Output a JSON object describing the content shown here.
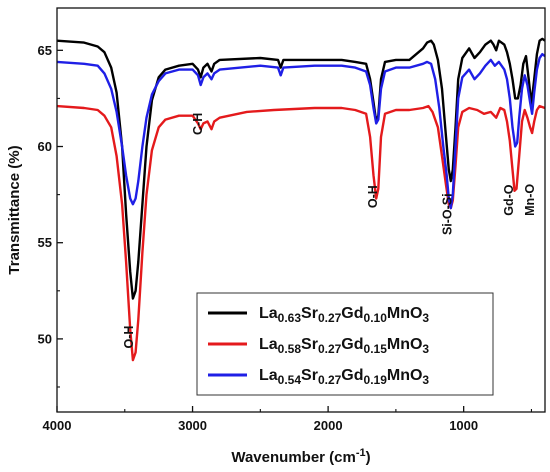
{
  "chart_data": {
    "type": "line",
    "xlabel": "Wavenumber (cm",
    "xlabel_sup": "-1",
    "xlabel_close": ")",
    "ylabel": "Transmittance (%)",
    "xlim": [
      4000,
      400
    ],
    "ylim": [
      46.2,
      67.2
    ],
    "x_ticks": [
      4000,
      3000,
      2000,
      1000
    ],
    "y_ticks": [
      50,
      55,
      60,
      65
    ],
    "annotations": [
      {
        "text": "O-H",
        "x": 3440,
        "y": 49.5,
        "vertical": true
      },
      {
        "text": "C-H",
        "x": 2930,
        "y": 60.6,
        "vertical": true
      },
      {
        "text": "O-H",
        "x": 1640,
        "y": 56.8,
        "vertical": true
      },
      {
        "text": "Si-O-Si",
        "x": 1090,
        "y": 55.4,
        "vertical": true
      },
      {
        "text": "Gd-O",
        "x": 635,
        "y": 56.4,
        "vertical": true
      },
      {
        "text": "Mn-O",
        "x": 480,
        "y": 56.4,
        "vertical": true
      }
    ],
    "series": [
      {
        "color": "#000000",
        "legend": [
          {
            "t": "La",
            "sub": false
          },
          {
            "t": "0.63",
            "sub": true
          },
          {
            "t": "Sr",
            "sub": false
          },
          {
            "t": "0.27",
            "sub": true
          },
          {
            "t": "Gd",
            "sub": false
          },
          {
            "t": "0.10",
            "sub": true
          },
          {
            "t": "MnO",
            "sub": false
          },
          {
            "t": "3",
            "sub": true
          }
        ],
        "points": [
          [
            4000,
            65.5
          ],
          [
            3800,
            65.4
          ],
          [
            3700,
            65.2
          ],
          [
            3650,
            64.9
          ],
          [
            3600,
            64.1
          ],
          [
            3560,
            62.8
          ],
          [
            3520,
            60
          ],
          [
            3490,
            56.5
          ],
          [
            3460,
            53.5
          ],
          [
            3440,
            52.1
          ],
          [
            3420,
            52.5
          ],
          [
            3400,
            54
          ],
          [
            3370,
            57
          ],
          [
            3340,
            60
          ],
          [
            3300,
            62.4
          ],
          [
            3250,
            63.6
          ],
          [
            3200,
            64.0
          ],
          [
            3100,
            64.2
          ],
          [
            3000,
            64.3
          ],
          [
            2960,
            64.0
          ],
          [
            2940,
            63.6
          ],
          [
            2920,
            64.1
          ],
          [
            2890,
            64.3
          ],
          [
            2860,
            63.9
          ],
          [
            2840,
            64.3
          ],
          [
            2800,
            64.5
          ],
          [
            2500,
            64.6
          ],
          [
            2370,
            64.5
          ],
          [
            2350,
            64.1
          ],
          [
            2330,
            64.5
          ],
          [
            2100,
            64.5
          ],
          [
            1900,
            64.5
          ],
          [
            1800,
            64.4
          ],
          [
            1720,
            64.3
          ],
          [
            1690,
            63.5
          ],
          [
            1665,
            62.3
          ],
          [
            1645,
            61.3
          ],
          [
            1630,
            61.6
          ],
          [
            1610,
            63.5
          ],
          [
            1580,
            64.4
          ],
          [
            1500,
            64.5
          ],
          [
            1400,
            64.5
          ],
          [
            1300,
            65.1
          ],
          [
            1270,
            65.4
          ],
          [
            1240,
            65.5
          ],
          [
            1220,
            65.3
          ],
          [
            1190,
            64.5
          ],
          [
            1160,
            63
          ],
          [
            1130,
            60.5
          ],
          [
            1110,
            58.8
          ],
          [
            1095,
            58.2
          ],
          [
            1080,
            58.8
          ],
          [
            1060,
            61
          ],
          [
            1040,
            63.5
          ],
          [
            1010,
            64.6
          ],
          [
            960,
            65.1
          ],
          [
            920,
            64.6
          ],
          [
            880,
            64.9
          ],
          [
            840,
            65.3
          ],
          [
            800,
            65.5
          ],
          [
            780,
            65.3
          ],
          [
            760,
            65.0
          ],
          [
            740,
            65.5
          ],
          [
            700,
            65.3
          ],
          [
            680,
            64.9
          ],
          [
            660,
            64.3
          ],
          [
            640,
            63.5
          ],
          [
            620,
            62.5
          ],
          [
            600,
            62.5
          ],
          [
            580,
            63.2
          ],
          [
            560,
            64.3
          ],
          [
            540,
            64.7
          ],
          [
            520,
            63.5
          ],
          [
            500,
            62.2
          ],
          [
            480,
            63.5
          ],
          [
            460,
            64.8
          ],
          [
            440,
            65.5
          ],
          [
            420,
            65.6
          ],
          [
            400,
            65.5
          ]
        ]
      },
      {
        "color": "#e41a1c",
        "legend": [
          {
            "t": "La",
            "sub": false
          },
          {
            "t": "0.58",
            "sub": true
          },
          {
            "t": "Sr",
            "sub": false
          },
          {
            "t": "0.27",
            "sub": true
          },
          {
            "t": "Gd",
            "sub": false
          },
          {
            "t": "0.15",
            "sub": true
          },
          {
            "t": "MnO",
            "sub": false
          },
          {
            "t": "3",
            "sub": true
          }
        ],
        "points": [
          [
            4000,
            62.1
          ],
          [
            3800,
            62.0
          ],
          [
            3700,
            61.9
          ],
          [
            3650,
            61.6
          ],
          [
            3600,
            61.0
          ],
          [
            3560,
            59.5
          ],
          [
            3520,
            57
          ],
          [
            3490,
            54
          ],
          [
            3460,
            50.5
          ],
          [
            3440,
            48.9
          ],
          [
            3420,
            49.3
          ],
          [
            3400,
            51
          ],
          [
            3370,
            54.5
          ],
          [
            3340,
            57.5
          ],
          [
            3300,
            59.8
          ],
          [
            3250,
            61.0
          ],
          [
            3200,
            61.4
          ],
          [
            3100,
            61.6
          ],
          [
            3000,
            61.6
          ],
          [
            2960,
            61.2
          ],
          [
            2940,
            60.9
          ],
          [
            2920,
            61.2
          ],
          [
            2890,
            61.3
          ],
          [
            2860,
            60.9
          ],
          [
            2840,
            61.3
          ],
          [
            2800,
            61.5
          ],
          [
            2600,
            61.8
          ],
          [
            2400,
            61.9
          ],
          [
            2100,
            62.0
          ],
          [
            1900,
            62.0
          ],
          [
            1800,
            61.9
          ],
          [
            1720,
            61.7
          ],
          [
            1690,
            60.5
          ],
          [
            1665,
            58.5
          ],
          [
            1645,
            57.3
          ],
          [
            1630,
            57.8
          ],
          [
            1610,
            60.5
          ],
          [
            1580,
            61.7
          ],
          [
            1500,
            61.9
          ],
          [
            1400,
            61.9
          ],
          [
            1300,
            62.0
          ],
          [
            1260,
            62.1
          ],
          [
            1230,
            61.8
          ],
          [
            1190,
            61
          ],
          [
            1160,
            59.5
          ],
          [
            1130,
            58
          ],
          [
            1110,
            57.0
          ],
          [
            1095,
            56.8
          ],
          [
            1080,
            57.2
          ],
          [
            1060,
            59
          ],
          [
            1040,
            61
          ],
          [
            1010,
            61.8
          ],
          [
            960,
            62.0
          ],
          [
            900,
            61.9
          ],
          [
            850,
            61.7
          ],
          [
            800,
            61.8
          ],
          [
            760,
            61.5
          ],
          [
            730,
            62.0
          ],
          [
            700,
            61.9
          ],
          [
            680,
            61.3
          ],
          [
            660,
            60.3
          ],
          [
            640,
            58.8
          ],
          [
            625,
            57.7
          ],
          [
            610,
            57.8
          ],
          [
            590,
            59.5
          ],
          [
            570,
            61.3
          ],
          [
            550,
            61.9
          ],
          [
            530,
            61.5
          ],
          [
            510,
            61.0
          ],
          [
            495,
            60.7
          ],
          [
            480,
            61.3
          ],
          [
            460,
            61.9
          ],
          [
            440,
            62.1
          ],
          [
            400,
            62.0
          ]
        ]
      },
      {
        "color": "#1f1fe6",
        "legend": [
          {
            "t": "La",
            "sub": false
          },
          {
            "t": "0.54",
            "sub": true
          },
          {
            "t": "Sr",
            "sub": false
          },
          {
            "t": "0.27",
            "sub": true
          },
          {
            "t": "Gd",
            "sub": false
          },
          {
            "t": "0.19",
            "sub": true
          },
          {
            "t": "MnO",
            "sub": false
          },
          {
            "t": "3",
            "sub": true
          }
        ],
        "points": [
          [
            4000,
            64.4
          ],
          [
            3800,
            64.3
          ],
          [
            3700,
            64.2
          ],
          [
            3650,
            63.8
          ],
          [
            3600,
            63.0
          ],
          [
            3560,
            61.8
          ],
          [
            3520,
            60.0
          ],
          [
            3490,
            58.5
          ],
          [
            3460,
            57.3
          ],
          [
            3440,
            57.0
          ],
          [
            3420,
            57.3
          ],
          [
            3400,
            58.2
          ],
          [
            3370,
            60
          ],
          [
            3340,
            61.5
          ],
          [
            3300,
            62.7
          ],
          [
            3250,
            63.4
          ],
          [
            3200,
            63.8
          ],
          [
            3100,
            64.0
          ],
          [
            3000,
            64.0
          ],
          [
            2960,
            63.7
          ],
          [
            2940,
            63.2
          ],
          [
            2920,
            63.6
          ],
          [
            2890,
            63.8
          ],
          [
            2860,
            63.5
          ],
          [
            2840,
            63.8
          ],
          [
            2800,
            64.0
          ],
          [
            2500,
            64.2
          ],
          [
            2370,
            64.1
          ],
          [
            2350,
            63.7
          ],
          [
            2330,
            64.1
          ],
          [
            2100,
            64.2
          ],
          [
            1900,
            64.2
          ],
          [
            1800,
            64.1
          ],
          [
            1720,
            63.9
          ],
          [
            1690,
            63.2
          ],
          [
            1665,
            62.0
          ],
          [
            1645,
            61.2
          ],
          [
            1630,
            61.4
          ],
          [
            1610,
            63.0
          ],
          [
            1580,
            63.9
          ],
          [
            1500,
            64.1
          ],
          [
            1400,
            64.1
          ],
          [
            1300,
            64.3
          ],
          [
            1270,
            64.4
          ],
          [
            1240,
            64.3
          ],
          [
            1210,
            63.5
          ],
          [
            1180,
            62
          ],
          [
            1150,
            60
          ],
          [
            1125,
            58.5
          ],
          [
            1110,
            57.3
          ],
          [
            1095,
            56.8
          ],
          [
            1080,
            57.5
          ],
          [
            1060,
            60
          ],
          [
            1040,
            62.5
          ],
          [
            1010,
            63.6
          ],
          [
            960,
            64.0
          ],
          [
            920,
            63.5
          ],
          [
            880,
            63.8
          ],
          [
            840,
            64.2
          ],
          [
            800,
            64.5
          ],
          [
            770,
            64.2
          ],
          [
            740,
            64.4
          ],
          [
            700,
            64.0
          ],
          [
            680,
            63.5
          ],
          [
            660,
            62.5
          ],
          [
            640,
            61.0
          ],
          [
            620,
            60.0
          ],
          [
            605,
            60.2
          ],
          [
            590,
            61.5
          ],
          [
            570,
            63.0
          ],
          [
            550,
            63.7
          ],
          [
            530,
            63.2
          ],
          [
            510,
            62.3
          ],
          [
            495,
            61.7
          ],
          [
            480,
            62.8
          ],
          [
            460,
            64.0
          ],
          [
            440,
            64.6
          ],
          [
            420,
            64.8
          ],
          [
            400,
            64.7
          ]
        ]
      }
    ]
  }
}
